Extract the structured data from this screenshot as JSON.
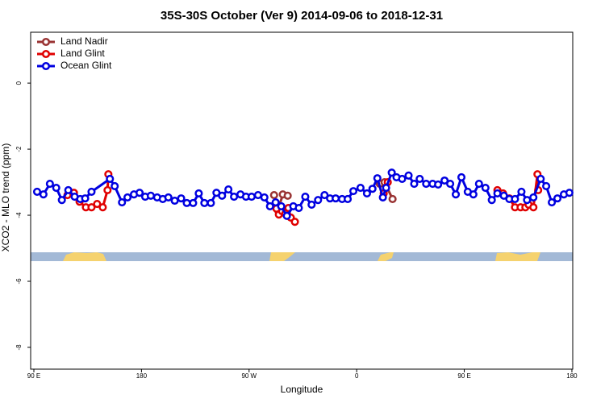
{
  "chart_data": {
    "type": "line",
    "title": "35S-30S October (Ver 9)   2014-09-06 to 2018-12-31",
    "x_label": "Longitude",
    "y_label": "XCO2 - MLO trend (ppm)",
    "xlim": [
      87.3,
      540.7
    ],
    "ylim": [
      -8.66,
      1.54
    ],
    "xticks": [
      {
        "value": 90,
        "label": "90 E"
      },
      180,
      {
        "value": 270,
        "label": "90 W"
      },
      {
        "value": 360,
        "label": "0"
      },
      {
        "value": 450,
        "label": "90 E"
      },
      {
        "value": 540,
        "label": "180"
      }
    ],
    "yticks": [
      0,
      -2,
      -4,
      -6,
      -8
    ],
    "legend": "top-left",
    "series": [
      {
        "name": "Land Nadir",
        "color": "#993333",
        "x": [
          120.8,
          200,
          290.9,
          294.2,
          298.2,
          302.3,
          340,
          379.3,
          383.3,
          390.0
        ],
        "values": [
          -3.32,
          null,
          -3.39,
          -3.85,
          -3.37,
          -3.41,
          null,
          -3.05,
          -3.0,
          -3.51
        ]
      },
      {
        "name": "Land Glint",
        "color": "#e00000",
        "x": [
          118.1,
          123.5,
          128.2,
          133.5,
          138.2,
          142.9,
          147.6,
          151.6,
          152.3,
          220,
          292.9,
          294.9,
          297.6,
          300.3,
          302.9,
          304.9,
          308.3,
          340,
          382.6,
          386.0,
          430,
          477.7,
          482.4,
          487.7,
          492.4,
          497.1,
          501.1,
          503.8,
          507.8,
          511.2,
          511.8
        ],
        "values": [
          -3.39,
          -3.32,
          -3.59,
          -3.76,
          -3.76,
          -3.66,
          -3.76,
          -3.24,
          -2.76,
          null,
          -3.8,
          -3.98,
          -3.88,
          -3.95,
          -3.78,
          -4.07,
          -4.2,
          null,
          -3.34,
          -3.0,
          null,
          -3.24,
          -3.34,
          -3.49,
          -3.76,
          -3.76,
          -3.76,
          -3.68,
          -3.76,
          -2.76,
          -3.24
        ]
      },
      {
        "name": "Ocean Glint",
        "color": "#0000e0",
        "x": [
          92.7,
          98.0,
          103.4,
          108.7,
          113.4,
          118.8,
          124.1,
          128.8,
          132.9,
          138.2,
          153.6,
          157.6,
          163.7,
          168.3,
          173.7,
          178.4,
          183.1,
          187.8,
          193.1,
          197.8,
          202.5,
          207.8,
          213.2,
          217.9,
          223.2,
          227.9,
          232.6,
          238.0,
          242.7,
          247.4,
          252.7,
          257.4,
          262.8,
          267.4,
          272.1,
          277.5,
          282.8,
          287.5,
          292.2,
          296.9,
          301.6,
          307.0,
          311.6,
          317.0,
          322.3,
          327.7,
          333.1,
          337.7,
          342.4,
          347.8,
          352.5,
          357.2,
          363.2,
          368.6,
          373.2,
          377.3,
          381.9,
          384.6,
          389.3,
          393.3,
          398.0,
          403.4,
          408.1,
          412.7,
          418.1,
          423.5,
          428.1,
          433.5,
          438.2,
          442.9,
          447.6,
          452.9,
          457.6,
          462.3,
          467.7,
          473.0,
          477.7,
          483.1,
          487.7,
          492.4,
          497.8,
          502.5,
          507.8,
          513.9,
          518.5,
          523.2,
          527.9,
          533.3,
          537.9
        ],
        "values": [
          -3.29,
          -3.37,
          -3.05,
          -3.17,
          -3.54,
          -3.24,
          -3.44,
          -3.51,
          -3.49,
          -3.29,
          -2.9,
          -3.12,
          -3.61,
          -3.46,
          -3.37,
          -3.32,
          -3.44,
          -3.41,
          -3.46,
          -3.51,
          -3.46,
          -3.56,
          -3.49,
          -3.63,
          -3.63,
          -3.34,
          -3.63,
          -3.63,
          -3.32,
          -3.41,
          -3.22,
          -3.44,
          -3.37,
          -3.44,
          -3.44,
          -3.39,
          -3.46,
          -3.73,
          -3.61,
          -3.73,
          -4.02,
          -3.73,
          -3.78,
          -3.44,
          -3.68,
          -3.54,
          -3.39,
          -3.49,
          -3.49,
          -3.51,
          -3.51,
          -3.27,
          -3.17,
          -3.34,
          -3.2,
          -2.88,
          -3.46,
          -3.17,
          -2.71,
          -2.85,
          -2.9,
          -2.8,
          -3.05,
          -2.9,
          -3.05,
          -3.05,
          -3.07,
          -2.95,
          -3.05,
          -3.37,
          -2.85,
          -3.29,
          -3.37,
          -3.05,
          -3.17,
          -3.54,
          -3.34,
          -3.41,
          -3.51,
          -3.51,
          -3.29,
          -3.54,
          -3.46,
          -2.9,
          -3.12,
          -3.61,
          -3.49,
          -3.37,
          -3.32
        ]
      }
    ]
  }
}
